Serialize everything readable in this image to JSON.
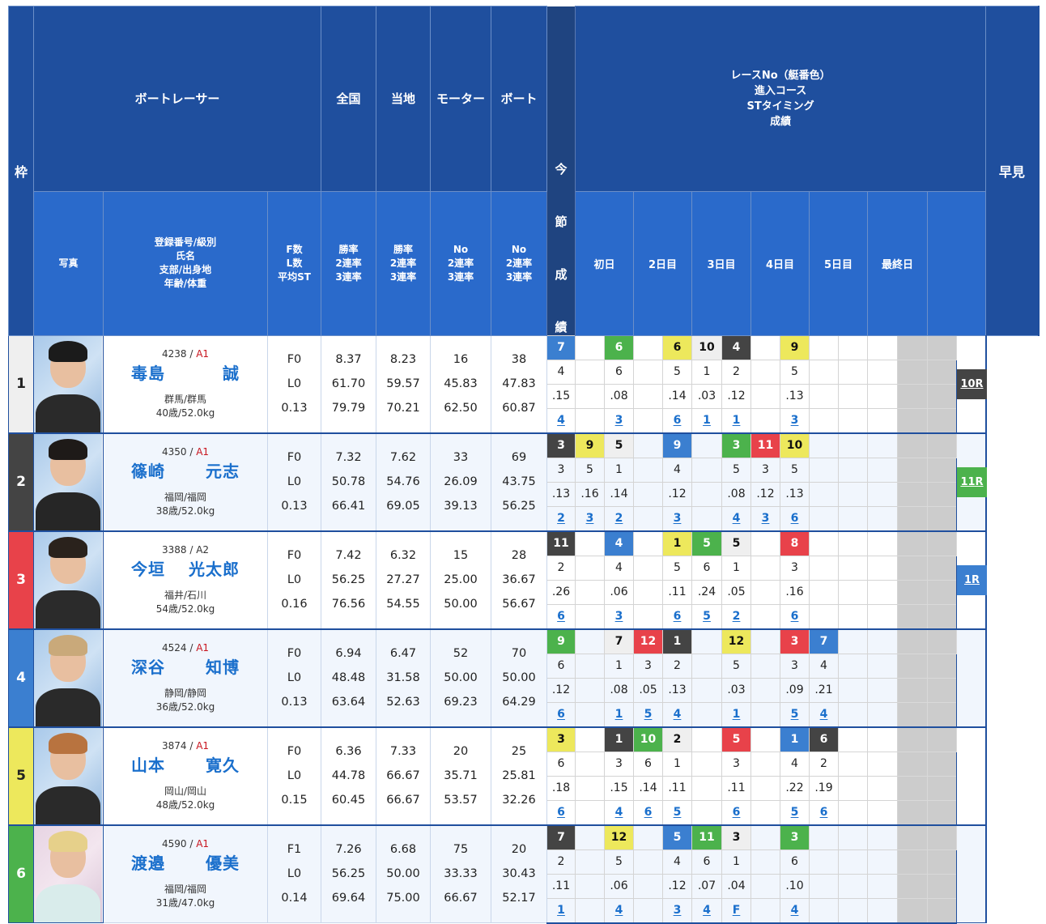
{
  "header": {
    "waku": "枠",
    "boat_racer": "ボートレーサー",
    "photo": "写真",
    "racer_info": [
      "登録番号/級別",
      "氏名",
      "支部/出身地",
      "年齢/体重"
    ],
    "fl": [
      "F数",
      "L数",
      "平均ST"
    ],
    "national": "全国",
    "national_sub": [
      "勝率",
      "2連率",
      "3連率"
    ],
    "local": "当地",
    "local_sub": [
      "勝率",
      "2連率",
      "3連率"
    ],
    "motor": "モーター",
    "motor_sub": [
      "No",
      "2連率",
      "3連率"
    ],
    "boat": "ボート",
    "boat_sub": [
      "No",
      "2連率",
      "3連率"
    ],
    "series_label": [
      "今",
      "節",
      "成",
      "績"
    ],
    "race_legend": [
      "レースNo（艇番色）",
      "進入コース",
      "STタイミング",
      "成績"
    ],
    "days": [
      "初日",
      "2日目",
      "3日目",
      "4日目",
      "5日目",
      "最終日",
      ""
    ],
    "hayami": "早見"
  },
  "colors": {
    "header_dark": "#1f4f9e",
    "header_light": "#2a6acb",
    "waku_1": "#efefef",
    "waku_2": "#444444",
    "waku_3": "#e8424a",
    "waku_4": "#3b7fd0",
    "waku_5": "#ede85c",
    "waku_6": "#4cb24c",
    "link": "#1a6fcc",
    "class_a1": "#c8141e"
  },
  "racers": [
    {
      "waku": "1",
      "reg_no": "4238",
      "class": "A1",
      "last_name": "毒島",
      "first_name": "誠",
      "branch_origin": "群馬/群馬",
      "age_weight": "40歳/52.0kg",
      "f": "F0",
      "l": "L0",
      "avg_st": "0.13",
      "national": [
        "8.37",
        "61.70",
        "79.79"
      ],
      "local": [
        "8.23",
        "59.57",
        "70.21"
      ],
      "motor": [
        "16",
        "45.83",
        "62.50"
      ],
      "boat": [
        "38",
        "47.83",
        "60.87"
      ],
      "races": [
        {
          "race": "7",
          "color": 4,
          "course": "4",
          "st": ".15",
          "result": "4"
        },
        null,
        {
          "race": "6",
          "color": 6,
          "course": "6",
          "st": ".08",
          "result": "3"
        },
        null,
        {
          "race": "6",
          "color": 5,
          "course": "5",
          "st": ".14",
          "result": "6"
        },
        {
          "race": "10",
          "color": 1,
          "course": "1",
          "st": ".03",
          "result": "1"
        },
        {
          "race": "4",
          "color": 2,
          "course": "2",
          "st": ".12",
          "result": "1"
        },
        null,
        {
          "race": "9",
          "color": 5,
          "course": "5",
          "st": ".13",
          "result": "3"
        },
        null,
        null,
        null
      ],
      "hayami": {
        "label": "10R",
        "color": "#444444"
      }
    },
    {
      "waku": "2",
      "reg_no": "4350",
      "class": "A1",
      "last_name": "篠崎",
      "first_name": "元志",
      "branch_origin": "福岡/福岡",
      "age_weight": "38歳/52.0kg",
      "f": "F0",
      "l": "L0",
      "avg_st": "0.13",
      "national": [
        "7.32",
        "50.78",
        "66.41"
      ],
      "local": [
        "7.62",
        "54.76",
        "69.05"
      ],
      "motor": [
        "33",
        "26.09",
        "39.13"
      ],
      "boat": [
        "69",
        "43.75",
        "56.25"
      ],
      "races": [
        {
          "race": "3",
          "color": 2,
          "course": "3",
          "st": ".13",
          "result": "2"
        },
        {
          "race": "9",
          "color": 5,
          "course": "5",
          "st": ".16",
          "result": "3"
        },
        {
          "race": "5",
          "color": 1,
          "course": "1",
          "st": ".14",
          "result": "2"
        },
        null,
        {
          "race": "9",
          "color": 4,
          "course": "4",
          "st": ".12",
          "result": "3"
        },
        null,
        {
          "race": "3",
          "color": 6,
          "course": "5",
          "st": ".08",
          "result": "4"
        },
        {
          "race": "11",
          "color": 3,
          "course": "3",
          "st": ".12",
          "result": "3"
        },
        {
          "race": "10",
          "color": 5,
          "course": "5",
          "st": ".13",
          "result": "6"
        },
        null,
        null,
        null
      ],
      "hayami": {
        "label": "11R",
        "color": "#4cb24c"
      }
    },
    {
      "waku": "3",
      "reg_no": "3388",
      "class": "A2",
      "last_name": "今垣",
      "first_name": "光太郎",
      "branch_origin": "福井/石川",
      "age_weight": "54歳/52.0kg",
      "f": "F0",
      "l": "L0",
      "avg_st": "0.16",
      "national": [
        "7.42",
        "56.25",
        "76.56"
      ],
      "local": [
        "6.32",
        "27.27",
        "54.55"
      ],
      "motor": [
        "15",
        "25.00",
        "50.00"
      ],
      "boat": [
        "28",
        "36.67",
        "56.67"
      ],
      "races": [
        {
          "race": "11",
          "color": 2,
          "course": "2",
          "st": ".26",
          "result": "6"
        },
        null,
        {
          "race": "4",
          "color": 4,
          "course": "4",
          "st": ".06",
          "result": "3"
        },
        null,
        {
          "race": "1",
          "color": 5,
          "course": "5",
          "st": ".11",
          "result": "6"
        },
        {
          "race": "5",
          "color": 6,
          "course": "6",
          "st": ".24",
          "result": "5"
        },
        {
          "race": "5",
          "color": 1,
          "course": "1",
          "st": ".05",
          "result": "2"
        },
        null,
        {
          "race": "8",
          "color": 3,
          "course": "3",
          "st": ".16",
          "result": "6"
        },
        null,
        null,
        null
      ],
      "hayami": {
        "label": "1R",
        "color": "#3b7fd0"
      }
    },
    {
      "waku": "4",
      "reg_no": "4524",
      "class": "A1",
      "last_name": "深谷",
      "first_name": "知博",
      "branch_origin": "静岡/静岡",
      "age_weight": "36歳/52.0kg",
      "f": "F0",
      "l": "L0",
      "avg_st": "0.13",
      "national": [
        "6.94",
        "48.48",
        "63.64"
      ],
      "local": [
        "6.47",
        "31.58",
        "52.63"
      ],
      "motor": [
        "52",
        "50.00",
        "69.23"
      ],
      "boat": [
        "70",
        "50.00",
        "64.29"
      ],
      "races": [
        {
          "race": "9",
          "color": 6,
          "course": "6",
          "st": ".12",
          "result": "6"
        },
        null,
        {
          "race": "7",
          "color": 1,
          "course": "1",
          "st": ".08",
          "result": "1"
        },
        {
          "race": "12",
          "color": 3,
          "course": "3",
          "st": ".05",
          "result": "5"
        },
        {
          "race": "1",
          "color": 2,
          "course": "2",
          "st": ".13",
          "result": "4"
        },
        null,
        {
          "race": "12",
          "color": 5,
          "course": "5",
          "st": ".03",
          "result": "1"
        },
        null,
        {
          "race": "3",
          "color": 3,
          "course": "3",
          "st": ".09",
          "result": "5"
        },
        {
          "race": "7",
          "color": 4,
          "course": "4",
          "st": ".21",
          "result": "4"
        },
        null,
        null
      ],
      "hayami": null
    },
    {
      "waku": "5",
      "reg_no": "3874",
      "class": "A1",
      "last_name": "山本",
      "first_name": "寛久",
      "branch_origin": "岡山/岡山",
      "age_weight": "48歳/52.0kg",
      "f": "F0",
      "l": "L0",
      "avg_st": "0.15",
      "national": [
        "6.36",
        "44.78",
        "60.45"
      ],
      "local": [
        "7.33",
        "66.67",
        "66.67"
      ],
      "motor": [
        "20",
        "35.71",
        "53.57"
      ],
      "boat": [
        "25",
        "25.81",
        "32.26"
      ],
      "races": [
        {
          "race": "3",
          "color": 5,
          "course": "6",
          "st": ".18",
          "result": "6"
        },
        null,
        {
          "race": "1",
          "color": 2,
          "course": "3",
          "st": ".15",
          "result": "4"
        },
        {
          "race": "10",
          "color": 6,
          "course": "6",
          "st": ".14",
          "result": "6"
        },
        {
          "race": "2",
          "color": 1,
          "course": "1",
          "st": ".11",
          "result": "5"
        },
        null,
        {
          "race": "5",
          "color": 3,
          "course": "3",
          "st": ".11",
          "result": "6"
        },
        null,
        {
          "race": "1",
          "color": 4,
          "course": "4",
          "st": ".22",
          "result": "5"
        },
        {
          "race": "6",
          "color": 2,
          "course": "2",
          "st": ".19",
          "result": "6"
        },
        null,
        null
      ],
      "hayami": null
    },
    {
      "waku": "6",
      "reg_no": "4590",
      "class": "A1",
      "last_name": "渡邉",
      "first_name": "優美",
      "branch_origin": "福岡/福岡",
      "age_weight": "31歳/47.0kg",
      "f": "F1",
      "l": "L0",
      "avg_st": "0.14",
      "national": [
        "7.26",
        "56.25",
        "69.64"
      ],
      "local": [
        "6.68",
        "50.00",
        "75.00"
      ],
      "motor": [
        "75",
        "33.33",
        "66.67"
      ],
      "boat": [
        "20",
        "30.43",
        "52.17"
      ],
      "races": [
        {
          "race": "7",
          "color": 2,
          "course": "2",
          "st": ".11",
          "result": "1"
        },
        null,
        {
          "race": "12",
          "color": 5,
          "course": "5",
          "st": ".06",
          "result": "4"
        },
        null,
        {
          "race": "5",
          "color": 4,
          "course": "4",
          "st": ".12",
          "result": "3"
        },
        {
          "race": "11",
          "color": 6,
          "course": "6",
          "st": ".07",
          "result": "4"
        },
        {
          "race": "3",
          "color": 1,
          "course": "1",
          "st": ".04",
          "result": "F"
        },
        null,
        {
          "race": "3",
          "color": 6,
          "course": "6",
          "st": ".10",
          "result": "4"
        },
        null,
        null,
        null
      ],
      "hayami": null
    }
  ]
}
